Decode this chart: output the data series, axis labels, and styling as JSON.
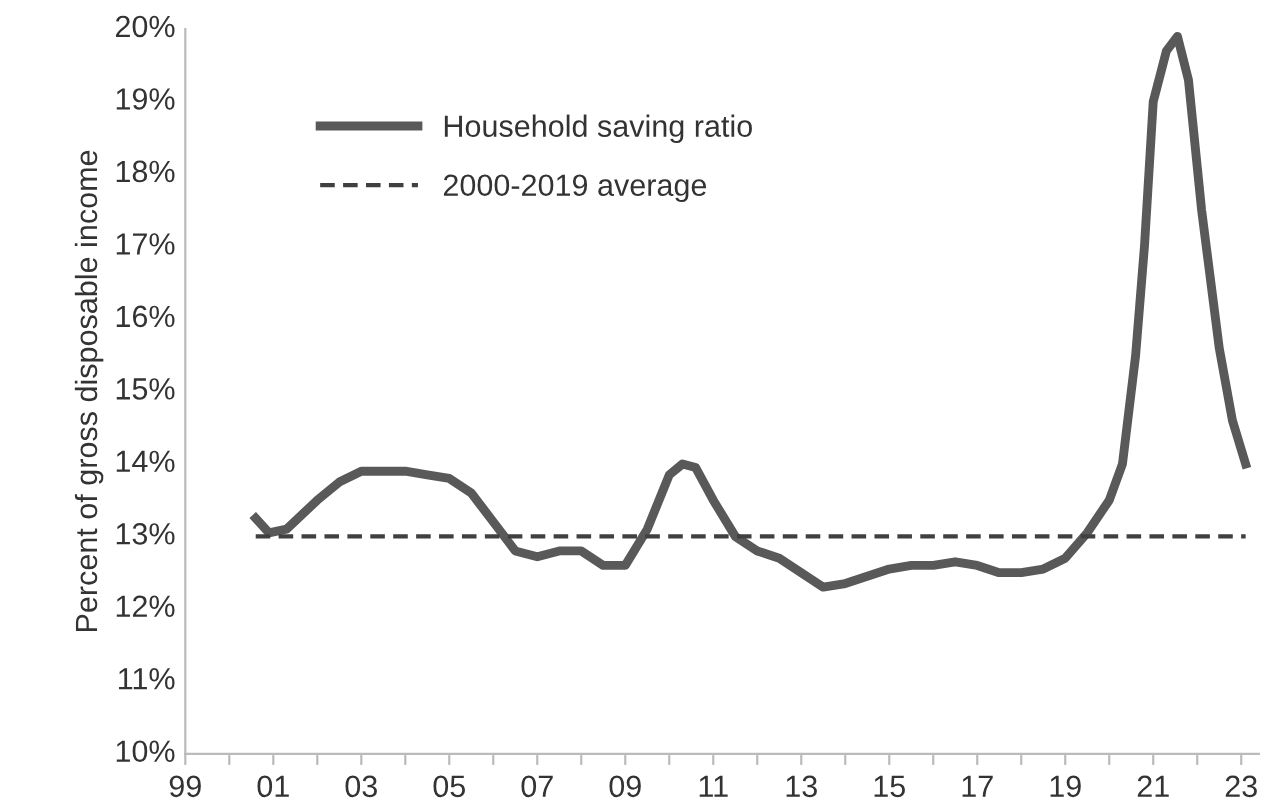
{
  "chart_data": {
    "type": "line",
    "ylabel": "Percent of gross disposable income",
    "xlim": [
      1999,
      2023.4
    ],
    "ylim": [
      10,
      20
    ],
    "xticks": [
      {
        "value": 1999,
        "label": "99"
      },
      {
        "value": 2000,
        "label": null
      },
      {
        "value": 2001,
        "label": "01"
      },
      {
        "value": 2002,
        "label": null
      },
      {
        "value": 2003,
        "label": "03"
      },
      {
        "value": 2004,
        "label": null
      },
      {
        "value": 2005,
        "label": "05"
      },
      {
        "value": 2006,
        "label": null
      },
      {
        "value": 2007,
        "label": "07"
      },
      {
        "value": 2008,
        "label": null
      },
      {
        "value": 2009,
        "label": "09"
      },
      {
        "value": 2010,
        "label": null
      },
      {
        "value": 2011,
        "label": "11"
      },
      {
        "value": 2012,
        "label": null
      },
      {
        "value": 2013,
        "label": "13"
      },
      {
        "value": 2014,
        "label": null
      },
      {
        "value": 2015,
        "label": "15"
      },
      {
        "value": 2016,
        "label": null
      },
      {
        "value": 2017,
        "label": "17"
      },
      {
        "value": 2018,
        "label": null
      },
      {
        "value": 2019,
        "label": "19"
      },
      {
        "value": 2020,
        "label": null
      },
      {
        "value": 2021,
        "label": "21"
      },
      {
        "value": 2022,
        "label": null
      },
      {
        "value": 2023,
        "label": "23"
      }
    ],
    "yticks": [
      {
        "value": 10,
        "label": "10%"
      },
      {
        "value": 11,
        "label": "11%"
      },
      {
        "value": 12,
        "label": "12%"
      },
      {
        "value": 13,
        "label": "13%"
      },
      {
        "value": 14,
        "label": "14%"
      },
      {
        "value": 15,
        "label": "15%"
      },
      {
        "value": 16,
        "label": "16%"
      },
      {
        "value": 17,
        "label": "17%"
      },
      {
        "value": 18,
        "label": "18%"
      },
      {
        "value": 19,
        "label": "19%"
      },
      {
        "value": 20,
        "label": "20%"
      }
    ],
    "grid": false,
    "legend": "top left",
    "marker": "none",
    "series": [
      {
        "name": "Household saving ratio",
        "color": "#595959",
        "line_style": "solid",
        "x": [
          2000.6,
          2000.9,
          2001.3,
          2002,
          2002.5,
          2003,
          2003.5,
          2004,
          2004.5,
          2005,
          2005.5,
          2006,
          2006.5,
          2007,
          2007.5,
          2008,
          2008.5,
          2009,
          2009.5,
          2010,
          2010.3,
          2010.6,
          2011,
          2011.5,
          2012,
          2012.5,
          2013,
          2013.5,
          2014,
          2014.5,
          2015,
          2015.5,
          2016,
          2016.5,
          2017,
          2017.5,
          2018,
          2018.5,
          2019,
          2019.5,
          2020,
          2020.3,
          2020.6,
          2020.8,
          2021,
          2021.3,
          2021.55,
          2021.8,
          2022.1,
          2022.5,
          2022.8,
          2023.1
        ],
        "values": [
          13.25,
          13.05,
          13.1,
          13.5,
          13.75,
          13.9,
          13.9,
          13.9,
          13.85,
          13.8,
          13.6,
          13.2,
          12.8,
          12.72,
          12.8,
          12.8,
          12.6,
          12.6,
          13.1,
          13.85,
          14.0,
          13.95,
          13.5,
          13.0,
          12.8,
          12.7,
          12.5,
          12.3,
          12.35,
          12.45,
          12.55,
          12.6,
          12.6,
          12.65,
          12.6,
          12.5,
          12.5,
          12.55,
          12.7,
          13.05,
          13.5,
          14.0,
          15.5,
          17.0,
          19.0,
          19.7,
          19.9,
          19.3,
          17.5,
          15.6,
          14.6,
          14.0
        ]
      },
      {
        "name": "2000-2019 average",
        "color": "#404040",
        "line_style": "dashed",
        "x": [
          2000.6,
          2023.1
        ],
        "values": [
          13.0,
          13.0
        ]
      }
    ]
  }
}
